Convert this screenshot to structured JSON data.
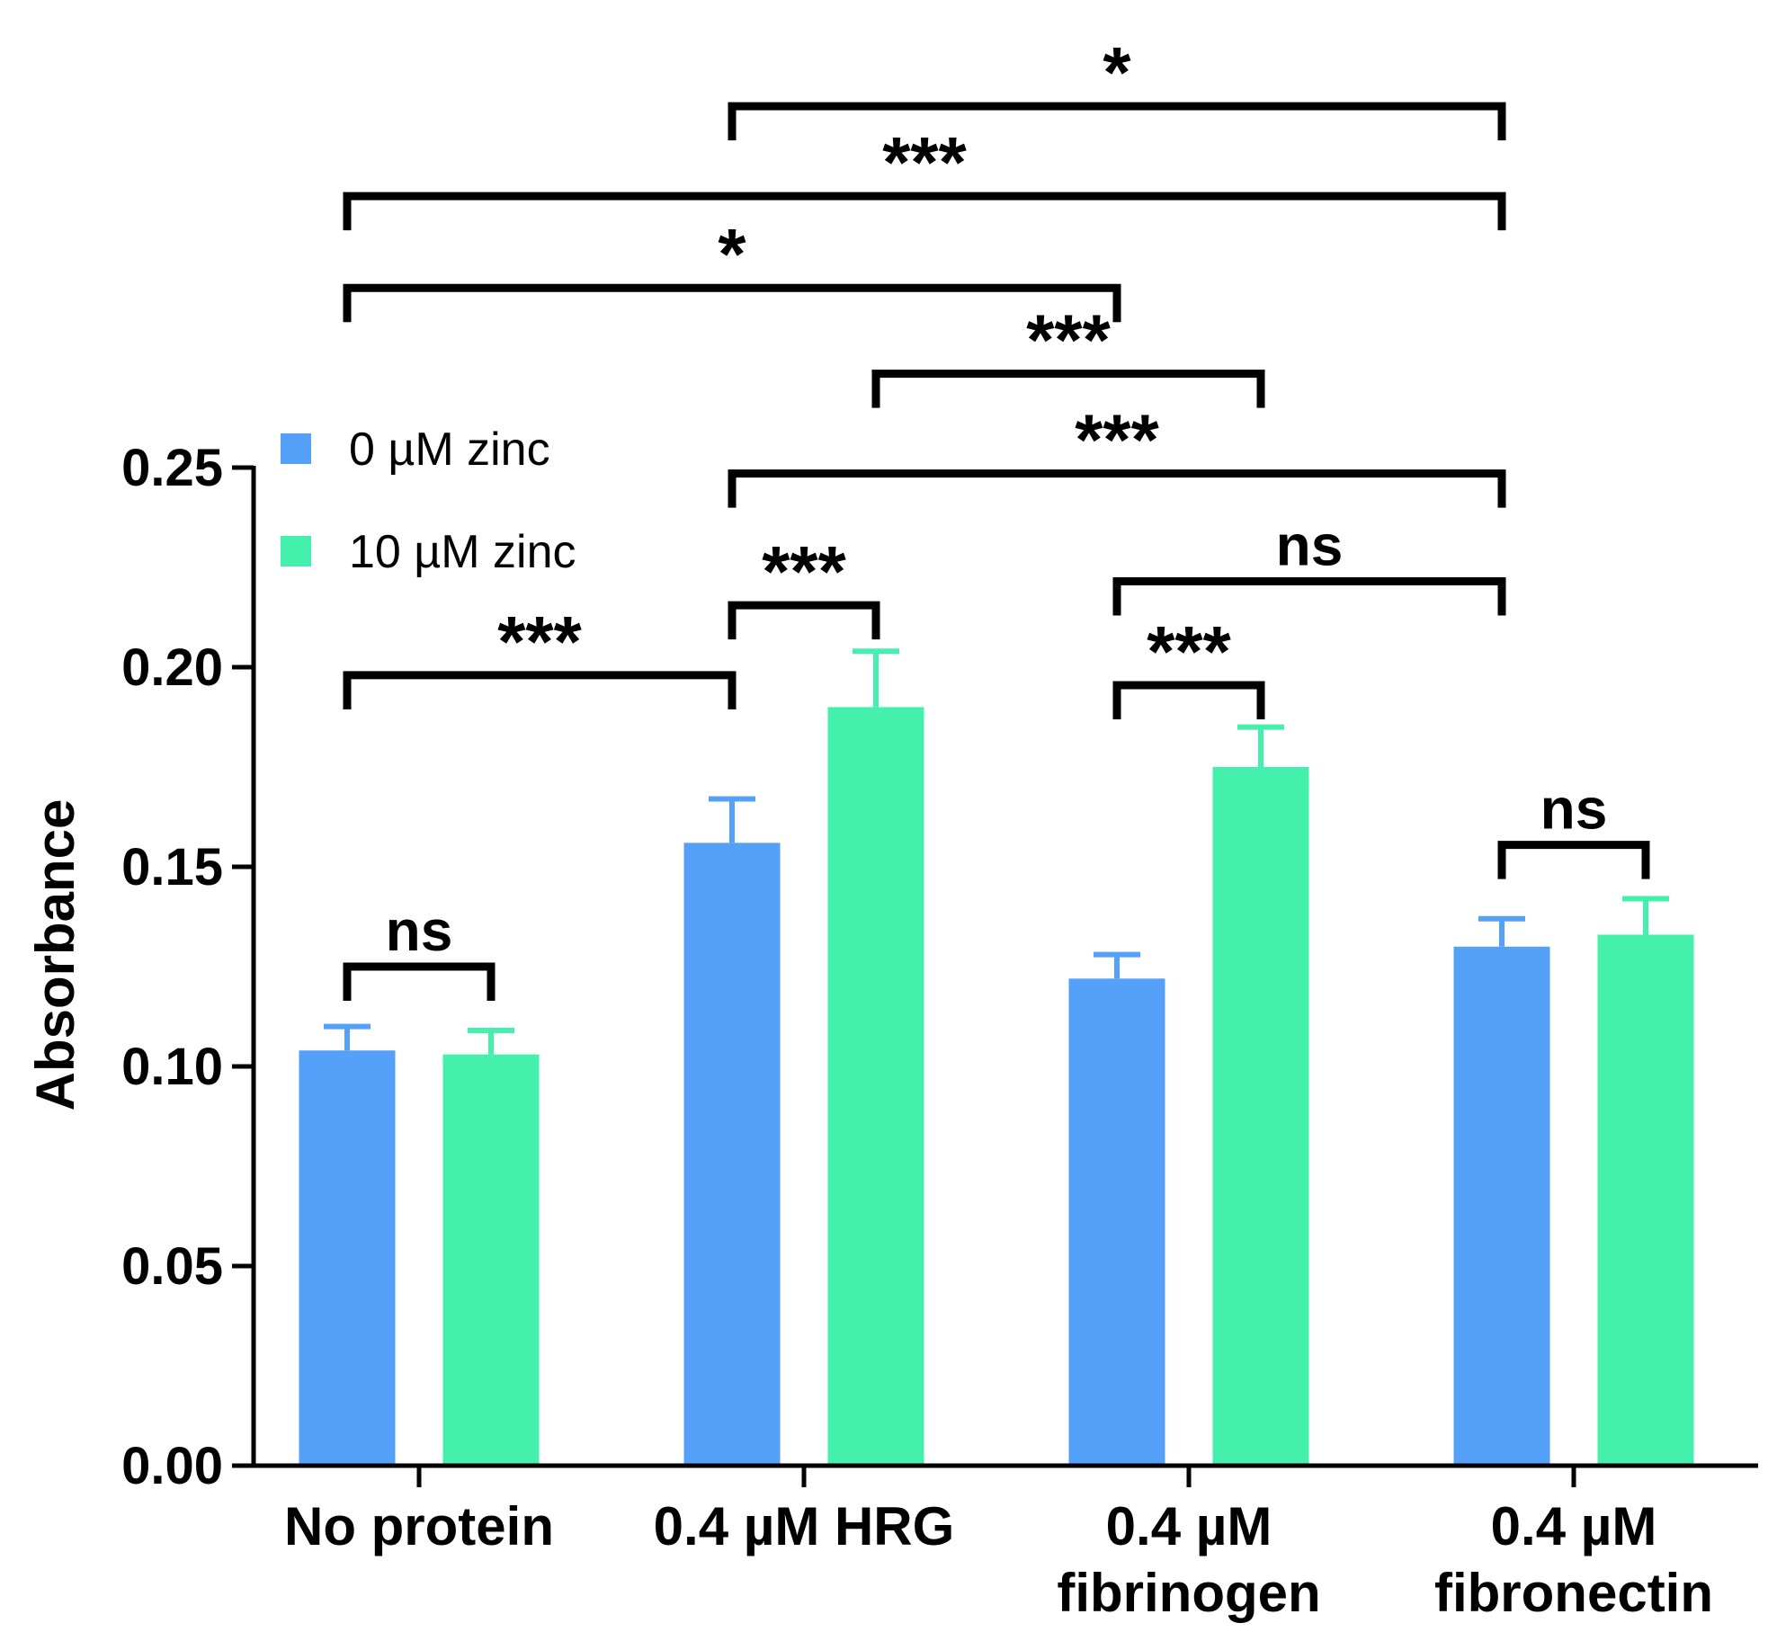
{
  "chart_data": {
    "type": "bar",
    "title": "",
    "xlabel": "",
    "ylabel": "Absorbance",
    "ylim": [
      0,
      0.25
    ],
    "y_ticks": [
      "0.00",
      "0.05",
      "0.10",
      "0.15",
      "0.20",
      "0.25"
    ],
    "y_tick_values": [
      0,
      0.05,
      0.1,
      0.15,
      0.2,
      0.25
    ],
    "grid": false,
    "legend_position": "top-left",
    "categories": [
      [
        "No protein"
      ],
      [
        "0.4 µM HRG"
      ],
      [
        "0.4 µM",
        "fibrinogen"
      ],
      [
        "0.4 µM",
        "fibronectin"
      ]
    ],
    "series": [
      {
        "name": "0 µM zinc",
        "color": "#55a1fa",
        "values": [
          0.104,
          0.156,
          0.122,
          0.13
        ],
        "errors": [
          0.006,
          0.011,
          0.006,
          0.007
        ]
      },
      {
        "name": "10 µM zinc",
        "color": "#45f0ad",
        "values": [
          0.103,
          0.19,
          0.175,
          0.133
        ],
        "errors": [
          0.006,
          0.014,
          0.01,
          0.009
        ]
      }
    ],
    "significance": [
      {
        "label": "ns",
        "from": [
          0,
          0
        ],
        "to": [
          0,
          1
        ],
        "level": 0.125
      },
      {
        "label": "***",
        "from": [
          0,
          0
        ],
        "to": [
          1,
          0
        ],
        "level": 0.198
      },
      {
        "label": "***",
        "from": [
          1,
          0
        ],
        "to": [
          1,
          1
        ],
        "level": 0.2155
      },
      {
        "label": "***",
        "from": [
          2,
          0
        ],
        "to": [
          2,
          1
        ],
        "level": 0.1955
      },
      {
        "label": "ns",
        "from": [
          3,
          0
        ],
        "to": [
          3,
          1
        ],
        "level": 0.1555
      },
      {
        "label": "ns",
        "from": [
          2,
          0
        ],
        "to": [
          3,
          0
        ],
        "level": 0.2215
      },
      {
        "label": "***",
        "from": [
          1,
          0
        ],
        "to": [
          3,
          0
        ],
        "level": 0.2485
      },
      {
        "label": "***",
        "from": [
          1,
          1
        ],
        "to": [
          2,
          1
        ],
        "level": 0.2735
      },
      {
        "label": "*",
        "from": [
          0,
          0
        ],
        "to": [
          2,
          0
        ],
        "level": 0.295
      },
      {
        "label": "***",
        "from": [
          0,
          0
        ],
        "to": [
          3,
          0
        ],
        "level": 0.318
      },
      {
        "label": "*",
        "from": [
          1,
          0
        ],
        "to": [
          3,
          0
        ],
        "level": 0.3405
      }
    ]
  }
}
